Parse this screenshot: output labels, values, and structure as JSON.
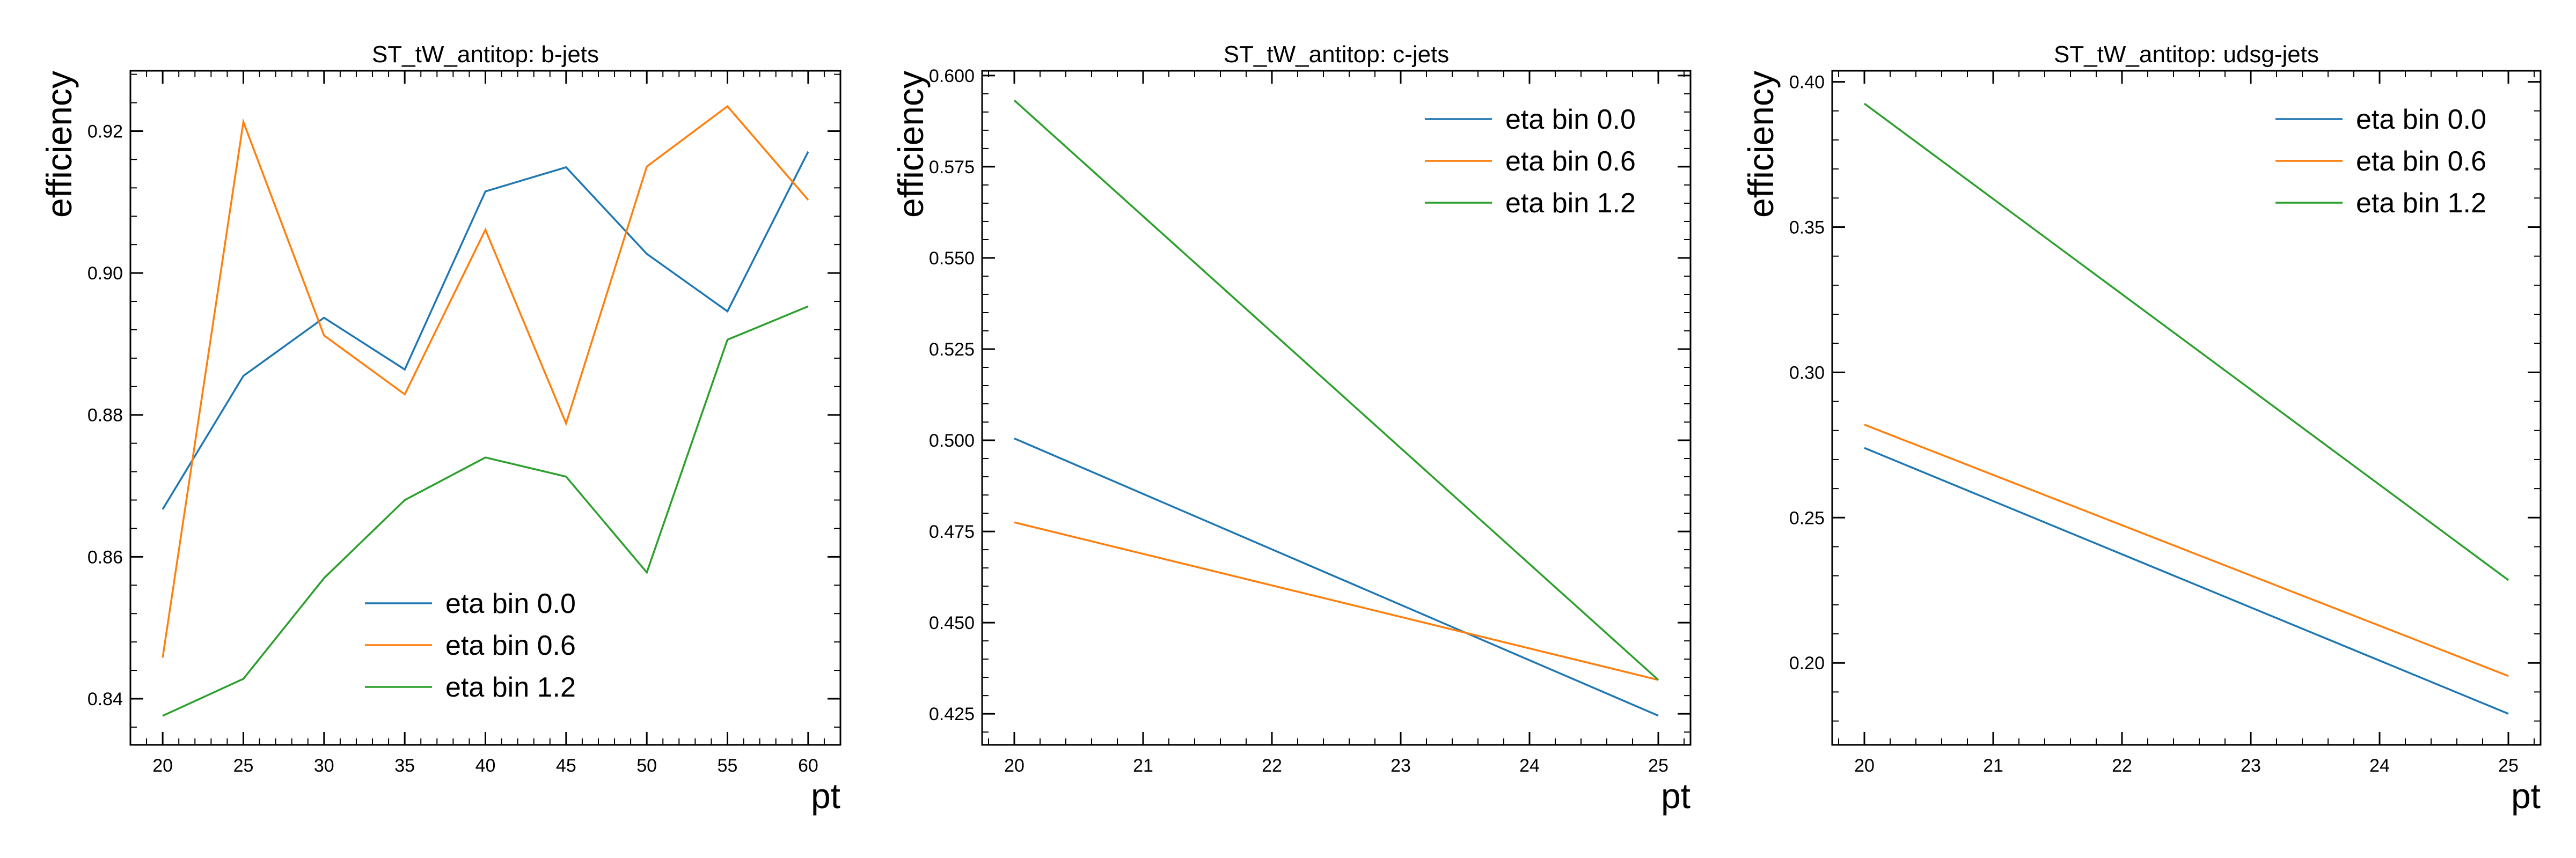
{
  "figure": {
    "background": "#ffffff"
  },
  "chart_data": [
    {
      "type": "line",
      "title": "ST_tW_antitop: b-jets",
      "xlabel": "pt",
      "ylabel": "efficiency",
      "xlim": [
        18,
        62
      ],
      "ylim": [
        0.8335,
        0.9285
      ],
      "xticks": [
        20,
        25,
        30,
        35,
        40,
        45,
        50,
        55,
        60
      ],
      "xtick_labels": [
        "20",
        "25",
        "30",
        "35",
        "40",
        "45",
        "50",
        "55",
        "60"
      ],
      "yticks": [
        0.84,
        0.86,
        0.88,
        0.9,
        0.92
      ],
      "ytick_labels": [
        "0.84",
        "0.86",
        "0.88",
        "0.90",
        "0.92"
      ],
      "x_minor_step": 1,
      "y_minor_step": 0.004,
      "grid": false,
      "legend": "lower-center",
      "x": [
        20,
        25,
        30,
        35,
        40,
        45,
        50,
        55,
        60
      ],
      "series": [
        {
          "name": "eta bin 0.0",
          "color": "#1f77b4",
          "values": [
            0.8667,
            0.8855,
            0.8937,
            0.8864,
            0.9115,
            0.9149,
            0.9027,
            0.8946,
            0.9171
          ]
        },
        {
          "name": "eta bin 0.6",
          "color": "#ff7f0e",
          "values": [
            0.8458,
            0.9213,
            0.8912,
            0.8829,
            0.9061,
            0.8788,
            0.915,
            0.9235,
            0.9103
          ]
        },
        {
          "name": "eta bin 1.2",
          "color": "#2ca02c",
          "values": [
            0.8376,
            0.8428,
            0.857,
            0.868,
            0.874,
            0.8713,
            0.8578,
            0.8906,
            0.8953
          ]
        }
      ]
    },
    {
      "type": "line",
      "title": "ST_tW_antitop: c-jets",
      "xlabel": "pt",
      "ylabel": "efficiency",
      "xlim": [
        19.75,
        25.25
      ],
      "ylim": [
        0.4165,
        0.6013
      ],
      "xticks": [
        20,
        21,
        22,
        23,
        24,
        25
      ],
      "xtick_labels": [
        "20",
        "21",
        "22",
        "23",
        "24",
        "25"
      ],
      "yticks": [
        0.425,
        0.45,
        0.475,
        0.5,
        0.525,
        0.55,
        0.575,
        0.6
      ],
      "ytick_labels": [
        "0.425",
        "0.450",
        "0.475",
        "0.500",
        "0.525",
        "0.550",
        "0.575",
        "0.600"
      ],
      "x_minor_step": 0.2,
      "y_minor_step": 0.005,
      "grid": false,
      "legend": "top-right",
      "x": [
        20,
        25
      ],
      "series": [
        {
          "name": "eta bin 0.0",
          "color": "#1f77b4",
          "values": [
            0.5005,
            0.4245
          ]
        },
        {
          "name": "eta bin 0.6",
          "color": "#ff7f0e",
          "values": [
            0.4775,
            0.4343
          ]
        },
        {
          "name": "eta bin 1.2",
          "color": "#2ca02c",
          "values": [
            0.5932,
            0.4343
          ]
        }
      ]
    },
    {
      "type": "line",
      "title": "ST_tW_antitop: udsg-jets",
      "xlabel": "pt",
      "ylabel": "efficiency",
      "xlim": [
        19.75,
        25.25
      ],
      "ylim": [
        0.1718,
        0.4038
      ],
      "xticks": [
        20,
        21,
        22,
        23,
        24,
        25
      ],
      "xtick_labels": [
        "20",
        "21",
        "22",
        "23",
        "24",
        "25"
      ],
      "yticks": [
        0.2,
        0.25,
        0.3,
        0.35,
        0.4
      ],
      "ytick_labels": [
        "0.20",
        "0.25",
        "0.30",
        "0.35",
        "0.40"
      ],
      "x_minor_step": 0.2,
      "y_minor_step": 0.01,
      "grid": false,
      "legend": "top-right",
      "x": [
        20,
        25
      ],
      "series": [
        {
          "name": "eta bin 0.0",
          "color": "#1f77b4",
          "values": [
            0.274,
            0.1825
          ]
        },
        {
          "name": "eta bin 0.6",
          "color": "#ff7f0e",
          "values": [
            0.282,
            0.1955
          ]
        },
        {
          "name": "eta bin 1.2",
          "color": "#2ca02c",
          "values": [
            0.3925,
            0.2285
          ]
        }
      ]
    }
  ]
}
